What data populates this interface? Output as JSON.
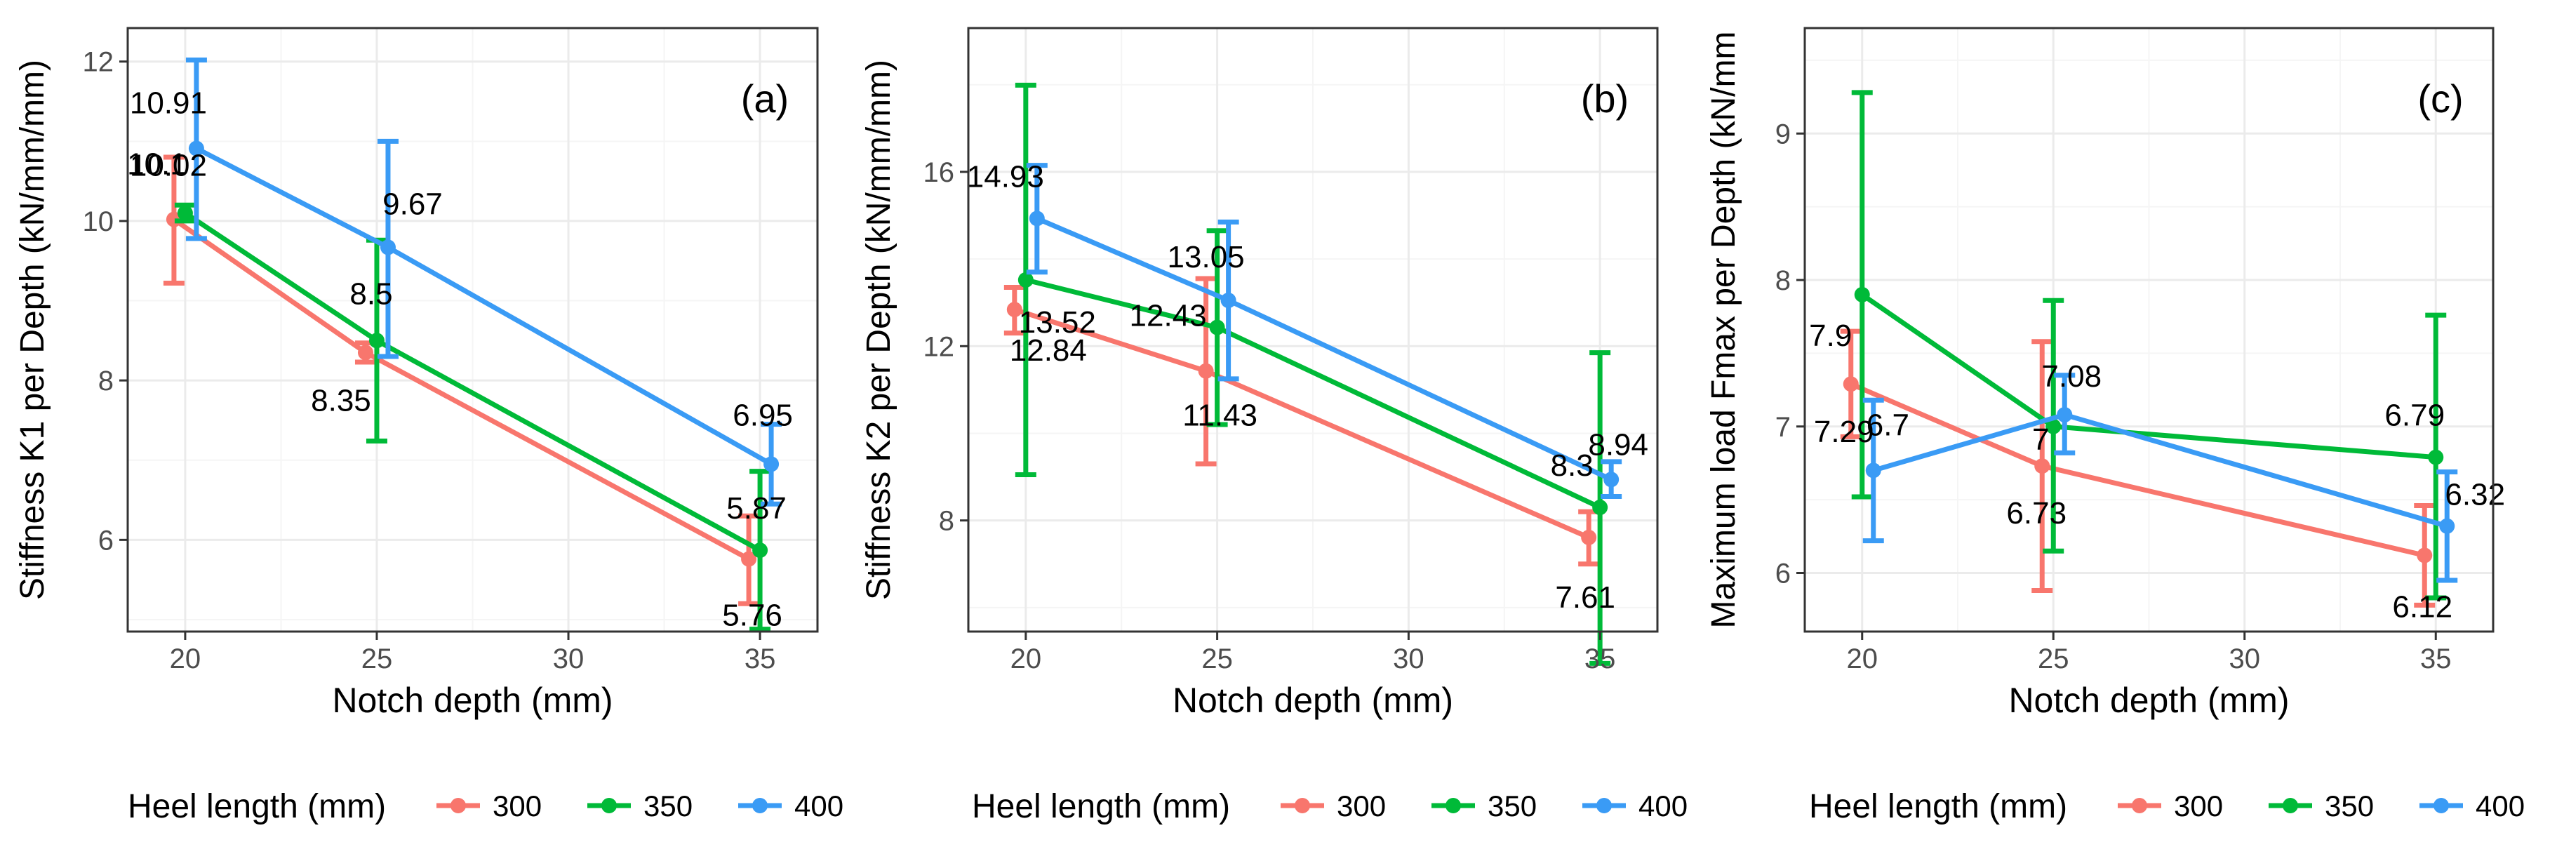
{
  "colors": {
    "300": "#F8766D",
    "350": "#00BA38",
    "400": "#3A9BF5",
    "grid_major": "#EBEBEB",
    "grid_minor": "#F5F5F5",
    "panel_border": "#333333",
    "text": "#000000",
    "tick_text": "#4D4D4D"
  },
  "chart_data": [
    {
      "type": "line",
      "panel": "(a)",
      "xlabel": "Notch depth (mm)",
      "ylabel": "Stiffness K1 per Depth (kN/mm/mm)",
      "x_ticks": [
        20,
        25,
        30,
        35
      ],
      "y_ticks": [
        6,
        8,
        10,
        12
      ],
      "xlim": [
        18.5,
        36.5
      ],
      "ylim": [
        4.85,
        12.42
      ],
      "legend_title": "Heel length (mm)",
      "series": [
        {
          "name": "300",
          "x": [
            20,
            25,
            35
          ],
          "y": [
            10.02,
            8.35,
            5.76
          ],
          "err_low": [
            9.22,
            8.23,
            5.2
          ],
          "err_high": [
            10.8,
            8.47,
            6.3
          ],
          "labels": [
            "10.02",
            "8.35",
            "5.76"
          ]
        },
        {
          "name": "350",
          "x": [
            20,
            25,
            35
          ],
          "y": [
            10.1,
            8.5,
            5.87
          ],
          "err_low": [
            10.0,
            7.24,
            4.88
          ],
          "err_high": [
            10.2,
            9.76,
            6.86
          ],
          "labels": [
            "10.1",
            "8.5",
            "5.87"
          ]
        },
        {
          "name": "400",
          "x": [
            20,
            25,
            35
          ],
          "y": [
            10.91,
            9.67,
            6.95
          ],
          "err_low": [
            9.78,
            8.3,
            6.45
          ],
          "err_high": [
            12.02,
            11.0,
            7.45
          ],
          "labels": [
            "10.91",
            "9.67",
            "6.95"
          ]
        }
      ]
    },
    {
      "type": "line",
      "panel": "(b)",
      "xlabel": "Notch depth (mm)",
      "ylabel": "Stiffness K2 per Depth (kN/mm/mm)",
      "x_ticks": [
        20,
        25,
        30,
        35
      ],
      "y_ticks": [
        8,
        12,
        16
      ],
      "xlim": [
        18.5,
        36.5
      ],
      "ylim": [
        5.45,
        19.3
      ],
      "legend_title": "Heel length (mm)",
      "series": [
        {
          "name": "300",
          "x": [
            20,
            25,
            35
          ],
          "y": [
            12.84,
            11.43,
            7.61
          ],
          "err_low": [
            12.3,
            9.3,
            7.0
          ],
          "err_high": [
            13.35,
            13.55,
            8.2
          ],
          "labels": [
            "12.84",
            "11.43",
            "7.61"
          ]
        },
        {
          "name": "350",
          "x": [
            20,
            25,
            35
          ],
          "y": [
            13.52,
            12.43,
            8.3
          ],
          "err_low": [
            9.05,
            10.2,
            4.72
          ],
          "err_high": [
            17.99,
            14.65,
            11.85
          ],
          "labels": [
            "13.52",
            "12.43",
            "8.3"
          ]
        },
        {
          "name": "400",
          "x": [
            20,
            25,
            35
          ],
          "y": [
            14.93,
            13.05,
            8.94
          ],
          "err_low": [
            13.7,
            11.25,
            8.55
          ],
          "err_high": [
            16.15,
            14.85,
            9.35
          ],
          "labels": [
            "14.93",
            "13.05",
            "8.94"
          ]
        }
      ]
    },
    {
      "type": "line",
      "panel": "(c)",
      "xlabel": "Notch depth (mm)",
      "ylabel": "Maximum load Fmax per Depth (kN/mm",
      "x_ticks": [
        20,
        25,
        30,
        35
      ],
      "y_ticks": [
        6,
        7,
        8,
        9
      ],
      "xlim": [
        18.5,
        36.5
      ],
      "ylim": [
        5.6,
        9.72
      ],
      "legend_title": "Heel length (mm)",
      "series": [
        {
          "name": "300",
          "x": [
            20,
            25,
            35
          ],
          "y": [
            7.29,
            6.73,
            6.12
          ],
          "err_low": [
            6.93,
            5.88,
            5.78
          ],
          "err_high": [
            7.65,
            7.58,
            6.46
          ],
          "labels": [
            "7.29",
            "6.73",
            "6.12"
          ]
        },
        {
          "name": "350",
          "x": [
            20,
            25,
            35
          ],
          "y": [
            7.9,
            7.0,
            6.79
          ],
          "err_low": [
            6.52,
            6.15,
            5.83
          ],
          "err_high": [
            9.28,
            7.86,
            7.76
          ],
          "labels": [
            "7.9",
            "7",
            "6.79"
          ]
        },
        {
          "name": "400",
          "x": [
            20,
            25,
            35
          ],
          "y": [
            6.7,
            7.08,
            6.32
          ],
          "err_low": [
            6.22,
            6.82,
            5.95
          ],
          "err_high": [
            7.18,
            7.35,
            6.69
          ],
          "labels": [
            "6.7",
            "7.08",
            "6.32"
          ]
        }
      ]
    }
  ]
}
